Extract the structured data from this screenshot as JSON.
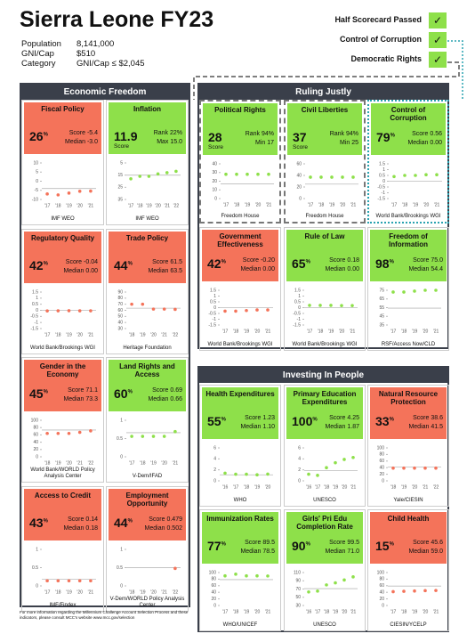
{
  "header": {
    "title": "Sierra Leone FY23",
    "facts": [
      [
        "Population",
        "8,141,000"
      ],
      [
        "GNI/Cap",
        "$510"
      ],
      [
        "Category",
        "GNI/Cap ≤ $2,045"
      ]
    ]
  },
  "checks": {
    "mark": "✓",
    "items": [
      "Half Scorecard Passed",
      "Control of Corruption",
      "Democratic Rights"
    ]
  },
  "sections": [
    {
      "title": "Economic Freedom",
      "cards": [
        {
          "title": "Fiscal Policy",
          "color": "#f4735a",
          "big": 26,
          "unit": "%",
          "l1": [
            "Score",
            "-5.4"
          ],
          "l2": [
            "Median",
            "-3.0"
          ],
          "chart": {
            "yticks": [
              10,
              5,
              0,
              -5,
              -10
            ],
            "ylim": [
              -10,
              10
            ],
            "xticks": [
              "'17",
              "'18",
              "'19",
              "'20",
              "'21"
            ],
            "values": [
              -7,
              -7.5,
              -6.5,
              -5.5,
              -5.4
            ],
            "line": -4
          },
          "source": "IMF WEO"
        },
        {
          "title": "Inflation",
          "color": "#8ee04a",
          "big": 11.9,
          "caption": "Score",
          "l1": [
            "Rank",
            "22%"
          ],
          "l2": [
            "Max",
            "15.0"
          ],
          "chart": {
            "yticks": [
              35,
              25,
              15,
              5
            ],
            "ylim": [
              35,
              5
            ],
            "xticks": [
              "'17",
              "'18",
              "'19",
              "'20",
              "'21",
              "'22"
            ],
            "values": [
              18,
              16,
              16,
              14,
              13,
              11.9
            ],
            "line": 15
          },
          "source": "IMF WEO"
        },
        {
          "title": "Regulatory Quality",
          "color": "#f4735a",
          "big": 42,
          "unit": "%",
          "l1": [
            "Score",
            "-0.04"
          ],
          "l2": [
            "Median",
            "0.00"
          ],
          "chart": {
            "yticks": [
              1.5,
              1,
              0.5,
              0,
              -0.5,
              -1,
              -1.5
            ],
            "ylim": [
              -1.5,
              1.5
            ],
            "xticks": [
              "'17",
              "'18",
              "'19",
              "'20",
              "'21"
            ],
            "values": [
              -0.05,
              -0.04,
              -0.03,
              -0.04,
              -0.04
            ],
            "line": 0
          },
          "source": "World Bank/Brookings WGI"
        },
        {
          "title": "Trade Policy",
          "color": "#f4735a",
          "big": 44,
          "unit": "%",
          "l1": [
            "Score",
            "61.5"
          ],
          "l2": [
            "Median",
            "63.5"
          ],
          "chart": {
            "yticks": [
              90,
              80,
              70,
              60,
              50,
              40,
              30
            ],
            "ylim": [
              30,
              90
            ],
            "xticks": [
              "'18",
              "'19",
              "'20",
              "'21",
              "'22"
            ],
            "values": [
              70,
              70,
              62,
              62,
              61.5
            ],
            "line": 63.5
          },
          "source": "Heritage Foundation"
        },
        {
          "title": "Gender in the Economy",
          "color": "#f4735a",
          "big": 45,
          "unit": "%",
          "l1": [
            "Score",
            "71.1"
          ],
          "l2": [
            "Median",
            "73.3"
          ],
          "chart": {
            "yticks": [
              100,
              80,
              60,
              40,
              20,
              0
            ],
            "ylim": [
              0,
              100
            ],
            "xticks": [
              "'18",
              "'19",
              "'20",
              "'21",
              "'22"
            ],
            "values": [
              64,
              64,
              64,
              67,
              71.1
            ],
            "line": 73.3
          },
          "source": "World Bank/WORLD Policy Analysis Center"
        },
        {
          "title": "Land Rights and Access",
          "color": "#8ee04a",
          "big": 60,
          "unit": "%",
          "l1": [
            "Score",
            "0.69"
          ],
          "l2": [
            "Median",
            "0.66"
          ],
          "chart": {
            "yticks": [
              1,
              0.5,
              0
            ],
            "ylim": [
              0,
              1
            ],
            "xticks": [
              "'17",
              "'18",
              "'19",
              "'20",
              "'21"
            ],
            "values": [
              0.56,
              0.56,
              0.56,
              0.56,
              0.69
            ],
            "line": 0.66
          },
          "source": "V-Dem/IFAD"
        },
        {
          "title": "Access to Credit",
          "color": "#f4735a",
          "big": 43,
          "unit": "%",
          "l1": [
            "Score",
            "0.14"
          ],
          "l2": [
            "Median",
            "0.18"
          ],
          "chart": {
            "yticks": [
              1,
              0.5,
              0
            ],
            "ylim": [
              0,
              1
            ],
            "xticks": [
              "'17",
              "'18",
              "'19",
              "'20",
              "'21"
            ],
            "values": [
              0.14,
              0.14,
              0.14,
              0.14,
              0.14
            ],
            "line": 0.18
          },
          "source": "IMF/Findex"
        },
        {
          "title": "Employment Opportunity",
          "color": "#f4735a",
          "big": 44,
          "unit": "%",
          "l1": [
            "Score",
            "0.479"
          ],
          "l2": [
            "Median",
            "0.502"
          ],
          "chart": {
            "yticks": [
              1,
              0.5,
              0
            ],
            "ylim": [
              0,
              1
            ],
            "xticks": [
              "'18",
              "'19",
              "'20",
              "'21",
              "'22"
            ],
            "values": [
              null,
              null,
              null,
              null,
              0.479
            ],
            "line": 0.502
          },
          "source": "V-Dem/WORLD Policy Analysis Center"
        }
      ]
    },
    {
      "title": "Ruling Justly",
      "cards": [
        {
          "title": "Political Rights",
          "color": "#8ee04a",
          "outline": "dashed",
          "big": 28,
          "caption": "Score",
          "l1": [
            "Rank",
            "94%"
          ],
          "l2": [
            "Min",
            "17"
          ],
          "chart": {
            "yticks": [
              40,
              30,
              20,
              10,
              0
            ],
            "ylim": [
              0,
              40
            ],
            "xticks": [
              "'17",
              "'18",
              "'19",
              "'20",
              "'21"
            ],
            "values": [
              28,
              28,
              28,
              28,
              28
            ],
            "line": 17
          },
          "source": "Freedom House"
        },
        {
          "title": "Civil Liberties",
          "color": "#8ee04a",
          "outline": "dashed",
          "big": 37,
          "caption": "Score",
          "l1": [
            "Rank",
            "94%"
          ],
          "l2": [
            "Min",
            "25"
          ],
          "chart": {
            "yticks": [
              60,
              40,
              20,
              0
            ],
            "ylim": [
              0,
              60
            ],
            "xticks": [
              "'17",
              "'18",
              "'19",
              "'20",
              "'21"
            ],
            "values": [
              37,
              37,
              37,
              37,
              37
            ],
            "line": 25
          },
          "source": "Freedom House"
        },
        {
          "title": "Control of Corruption",
          "color": "#8ee04a",
          "outline": "dotted",
          "big": 79,
          "unit": "%",
          "l1": [
            "Score",
            "0.56"
          ],
          "l2": [
            "Median",
            "0.00"
          ],
          "chart": {
            "yticks": [
              1.5,
              1,
              0.5,
              0,
              -0.5,
              -1,
              -1.5
            ],
            "ylim": [
              -1.5,
              1.5
            ],
            "xticks": [
              "'17",
              "'18",
              "'19",
              "'20",
              "'21"
            ],
            "values": [
              0.4,
              0.5,
              0.5,
              0.56,
              0.56
            ],
            "line": 0
          },
          "source": "World Bank/Brookings WGI"
        },
        {
          "title": "Government Effectiveness",
          "color": "#f4735a",
          "big": 42,
          "unit": "%",
          "l1": [
            "Score",
            "-0.20"
          ],
          "l2": [
            "Median",
            "0.00"
          ],
          "chart": {
            "yticks": [
              1.5,
              1,
              0.5,
              0,
              -0.5,
              -1,
              -1.5
            ],
            "ylim": [
              -1.5,
              1.5
            ],
            "xticks": [
              "'17",
              "'18",
              "'19",
              "'20",
              "'21"
            ],
            "values": [
              -0.3,
              -0.3,
              -0.25,
              -0.2,
              -0.2
            ],
            "line": 0
          },
          "source": "World Bank/Brookings WGI"
        },
        {
          "title": "Rule of Law",
          "color": "#8ee04a",
          "big": 65,
          "unit": "%",
          "l1": [
            "Score",
            "0.18"
          ],
          "l2": [
            "Median",
            "0.00"
          ],
          "chart": {
            "yticks": [
              1.5,
              1,
              0.5,
              0,
              -0.5,
              -1,
              -1.5
            ],
            "ylim": [
              -1.5,
              1.5
            ],
            "xticks": [
              "'17",
              "'18",
              "'19",
              "'20",
              "'21"
            ],
            "values": [
              0.2,
              0.2,
              0.2,
              0.18,
              0.18
            ],
            "line": 0
          },
          "source": "World Bank/Brookings WGI"
        },
        {
          "title": "Freedom of Information",
          "color": "#8ee04a",
          "big": 98,
          "unit": "%",
          "l1": [
            "Score",
            "75.0"
          ],
          "l2": [
            "Median",
            "54.4"
          ],
          "chart": {
            "yticks": [
              75,
              65,
              55,
              45,
              35
            ],
            "ylim": [
              35,
              75
            ],
            "xticks": [
              "'17",
              "'18",
              "'19",
              "'20",
              "'21"
            ],
            "values": [
              73,
              73,
              74,
              75,
              75
            ],
            "line": 54.4
          },
          "source": "RSF/Access Now/CLD"
        }
      ]
    },
    {
      "title": "Investing In People",
      "cards": [
        {
          "title": "Health Expenditures",
          "color": "#8ee04a",
          "big": 55,
          "unit": "%",
          "l1": [
            "Score",
            "1.23"
          ],
          "l2": [
            "Median",
            "1.10"
          ],
          "chart": {
            "yticks": [
              6,
              4,
              2,
              0
            ],
            "ylim": [
              0,
              6
            ],
            "xticks": [
              "'16",
              "'17",
              "'18",
              "'19",
              "'20"
            ],
            "values": [
              1.4,
              1.2,
              1.2,
              1.1,
              1.23
            ],
            "line": 1.1
          },
          "source": "WHO"
        },
        {
          "title": "Primary Education Expenditures",
          "color": "#8ee04a",
          "big": 100,
          "unit": "%",
          "l1": [
            "Score",
            "4.25"
          ],
          "l2": [
            "Median",
            "1.87"
          ],
          "chart": {
            "yticks": [
              6,
              4,
              2,
              0
            ],
            "ylim": [
              0,
              6
            ],
            "xticks": [
              "'16",
              "'17",
              "'18",
              "'19",
              "'20",
              "'21"
            ],
            "values": [
              1.2,
              1,
              2.4,
              3.3,
              3.9,
              4.25
            ],
            "line": 1.87
          },
          "source": "UNESCO"
        },
        {
          "title": "Natural Resource Protection",
          "color": "#f4735a",
          "big": 33,
          "unit": "%",
          "l1": [
            "Score",
            "38.6"
          ],
          "l2": [
            "Median",
            "41.5"
          ],
          "chart": {
            "yticks": [
              100,
              80,
              60,
              40,
              20,
              0
            ],
            "ylim": [
              0,
              100
            ],
            "xticks": [
              "'18",
              "'19",
              "'20",
              "'21",
              "'22"
            ],
            "values": [
              38.6,
              38.6,
              38.6,
              38.6,
              38.6
            ],
            "line": 41.5
          },
          "source": "Yale/CIESIN"
        },
        {
          "title": "Immunization Rates",
          "color": "#8ee04a",
          "big": 77,
          "unit": "%",
          "l1": [
            "Score",
            "89.5"
          ],
          "l2": [
            "Median",
            "78.5"
          ],
          "chart": {
            "yticks": [
              100,
              80,
              60,
              40,
              20,
              0
            ],
            "ylim": [
              0,
              100
            ],
            "xticks": [
              "'17",
              "'18",
              "'19",
              "'20",
              "'21"
            ],
            "values": [
              90,
              95,
              90,
              90,
              89.5
            ],
            "line": 78.5
          },
          "source": "WHO/UNICEF"
        },
        {
          "title": "Girls' Pri Edu Completion Rate",
          "color": "#8ee04a",
          "big": 90,
          "unit": "%",
          "l1": [
            "Score",
            "99.5"
          ],
          "l2": [
            "Median",
            "71.0"
          ],
          "chart": {
            "yticks": [
              110,
              90,
              70,
              50,
              30
            ],
            "ylim": [
              30,
              110
            ],
            "xticks": [
              "'16",
              "'17",
              "'18",
              "'19",
              "'20",
              "'21"
            ],
            "values": [
              63,
              65,
              80,
              85,
              92,
              99.5
            ],
            "line": 71
          },
          "source": "UNESCO"
        },
        {
          "title": "Child Health",
          "color": "#f4735a",
          "big": 15,
          "unit": "%",
          "l1": [
            "Score",
            "45.6"
          ],
          "l2": [
            "Median",
            "59.0"
          ],
          "chart": {
            "yticks": [
              100,
              80,
              60,
              40,
              20,
              0
            ],
            "ylim": [
              0,
              100
            ],
            "xticks": [
              "'17",
              "'18",
              "'19",
              "'20",
              "'21"
            ],
            "values": [
              42,
              43,
              44,
              45,
              45.6
            ],
            "line": 59
          },
          "source": "CIESIN/YCELP"
        }
      ]
    }
  ],
  "footer": "For more information regarding the Millennium Challenge Account Selection Process and these indicators, please consult MCC's website www.mcc.gov/selection"
}
